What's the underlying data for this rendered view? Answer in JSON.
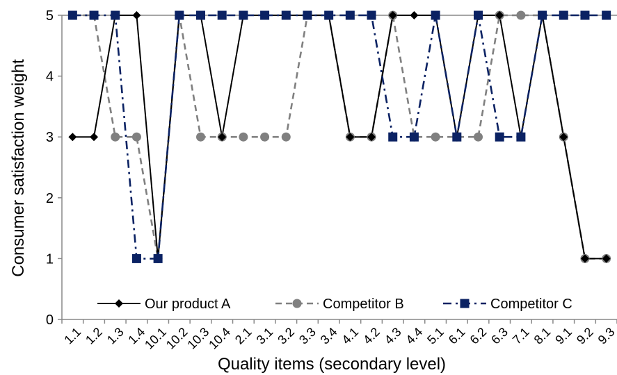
{
  "chart_data": {
    "type": "line",
    "xlabel": "Quality items (secondary level)",
    "ylabel": "Consumer satisfaction weight",
    "ylim": [
      0,
      5
    ],
    "yticks": [
      0,
      1,
      2,
      3,
      4,
      5
    ],
    "categories": [
      "1.1",
      "1.2",
      "1.3",
      "1.4",
      "10.1",
      "10.2",
      "10.3",
      "10.4",
      "2.1",
      "3.1",
      "3.2",
      "3.3",
      "3.4",
      "4.1",
      "4.2",
      "4.3",
      "4.4",
      "5.1",
      "6.1",
      "6.2",
      "6.3",
      "7.1",
      "8.1",
      "9.1",
      "9.2",
      "9.3"
    ],
    "grid": false,
    "legend": "bottom",
    "series": [
      {
        "name": "Our product A",
        "color": "#000000",
        "dash": "solid",
        "marker": "diamond",
        "values": [
          3,
          3,
          5,
          5,
          1,
          5,
          5,
          3,
          5,
          5,
          5,
          5,
          5,
          3,
          3,
          5,
          5,
          5,
          3,
          5,
          5,
          3,
          5,
          3,
          1,
          1
        ]
      },
      {
        "name": "Competitor B",
        "color": "#808080",
        "dash": "dashed",
        "marker": "circle",
        "values": [
          5,
          5,
          3,
          3,
          1,
          5,
          3,
          3,
          3,
          3,
          3,
          5,
          5,
          3,
          3,
          5,
          3,
          3,
          3,
          3,
          5,
          5,
          5,
          3,
          1,
          1
        ]
      },
      {
        "name": "Competitor C",
        "color": "#0b2263",
        "dash": "dashdot",
        "marker": "square",
        "values": [
          5,
          5,
          5,
          1,
          1,
          5,
          5,
          5,
          5,
          5,
          5,
          5,
          5,
          5,
          5,
          3,
          3,
          5,
          3,
          5,
          3,
          3,
          5,
          5,
          5,
          5
        ]
      }
    ]
  }
}
